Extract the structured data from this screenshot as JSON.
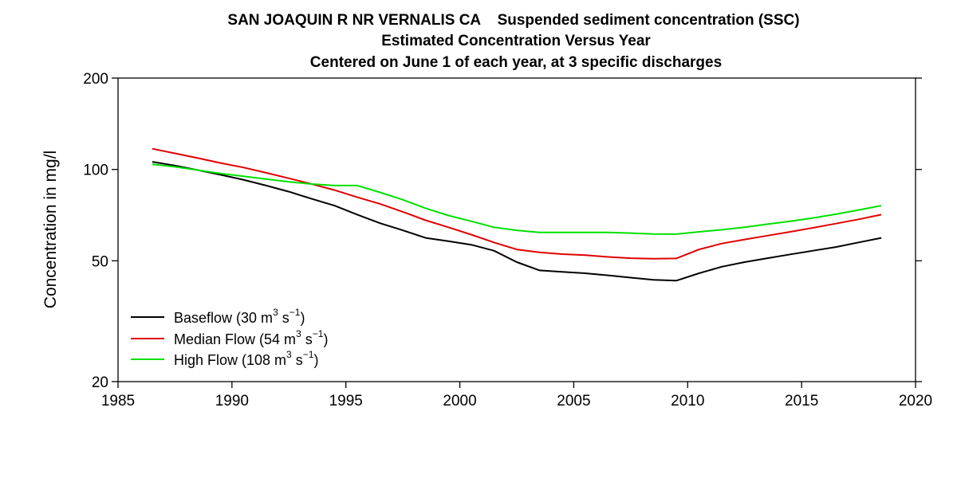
{
  "chart_data": {
    "type": "line",
    "title": "SAN JOAQUIN R NR VERNALIS CA    Suspended sediment concentration (SSC)",
    "subtitle": [
      "Estimated Concentration Versus Year",
      "Centered on June 1 of each year, at 3 specific discharges"
    ],
    "xlabel": "",
    "ylabel": "Concentration in mg/l",
    "xlim": [
      1985,
      2020
    ],
    "ylim": [
      20,
      200
    ],
    "y_scale": "log",
    "x_ticks": [
      1985,
      1990,
      1995,
      2000,
      2005,
      2010,
      2015,
      2020
    ],
    "y_ticks": [
      20,
      50,
      100,
      200
    ],
    "grid": false,
    "legend": {
      "placement": "bottom-left",
      "entries": [
        {
          "base": "Baseflow (30 m",
          "exp1": "3",
          "mid": " s",
          "exp2": "−1",
          "tail": ")"
        },
        {
          "base": "Median Flow (54 m",
          "exp1": "3",
          "mid": " s",
          "exp2": "−1",
          "tail": ")"
        },
        {
          "base": "High Flow (108 m",
          "exp1": "3",
          "mid": " s",
          "exp2": "−1",
          "tail": ")"
        }
      ]
    },
    "series": [
      {
        "name": "Baseflow (30 m3 s−1)",
        "color": "#000000",
        "x": [
          1986.5,
          1987.5,
          1988.5,
          1989.5,
          1990.5,
          1991.5,
          1992.5,
          1993.5,
          1994.5,
          1995.5,
          1996.5,
          1997.5,
          1998.5,
          1999.5,
          2000.5,
          2001.5,
          2002.5,
          2003.5,
          2004.5,
          2005.5,
          2006.5,
          2007.5,
          2008.5,
          2009.5,
          2010.5,
          2011.5,
          2012.5,
          2013.5,
          2014.5,
          2015.5,
          2016.5,
          2017.5,
          2018.5
        ],
        "y": [
          106,
          103,
          99.5,
          96,
          92.5,
          88.5,
          84.5,
          80,
          76,
          71,
          66.5,
          63,
          59.5,
          58,
          56.5,
          54,
          49.5,
          46.5,
          46,
          45.5,
          44.8,
          44,
          43.3,
          43,
          45.5,
          47.8,
          49.5,
          51,
          52.5,
          54,
          55.5,
          57.5,
          59.5
        ]
      },
      {
        "name": "Median Flow (54 m3 s−1)",
        "color": "#e00000",
        "x": [
          1986.5,
          1987.5,
          1988.5,
          1989.5,
          1990.5,
          1991.5,
          1992.5,
          1993.5,
          1994.5,
          1995.5,
          1996.5,
          1997.5,
          1998.5,
          1999.5,
          2000.5,
          2001.5,
          2002.5,
          2003.5,
          2004.5,
          2005.5,
          2006.5,
          2007.5,
          2008.5,
          2009.5,
          2010.5,
          2011.5,
          2012.5,
          2013.5,
          2014.5,
          2015.5,
          2016.5,
          2017.5,
          2018.5
        ],
        "y": [
          117,
          113,
          109,
          105,
          101.5,
          97.5,
          93.5,
          89.5,
          85.5,
          81,
          77,
          72.5,
          68,
          64.5,
          61,
          57.5,
          54.5,
          53.3,
          52.6,
          52.2,
          51.5,
          51,
          50.8,
          50.9,
          54.5,
          57,
          58.8,
          60.5,
          62.3,
          64.2,
          66.3,
          68.5,
          71
        ]
      },
      {
        "name": "High Flow (108 m3 s−1)",
        "color": "#00e000",
        "x": [
          1986.5,
          1987.5,
          1988.5,
          1989.5,
          1990.5,
          1991.5,
          1992.5,
          1993.5,
          1994.5,
          1995.5,
          1996.5,
          1997.5,
          1998.5,
          1999.5,
          2000.5,
          2001.5,
          2002.5,
          2003.5,
          2004.5,
          2005.5,
          2006.5,
          2007.5,
          2008.5,
          2009.5,
          2010.5,
          2011.5,
          2012.5,
          2013.5,
          2014.5,
          2015.5,
          2016.5,
          2017.5,
          2018.5
        ],
        "y": [
          104,
          102,
          99.5,
          97,
          95,
          93,
          91,
          89.5,
          88.5,
          88.5,
          84,
          79.5,
          74.5,
          70.5,
          67.5,
          64.5,
          63,
          62,
          62,
          62,
          62,
          61.7,
          61.3,
          61.2,
          62.3,
          63.3,
          64.5,
          66,
          67.5,
          69.2,
          71.2,
          73.5,
          76
        ]
      }
    ]
  }
}
